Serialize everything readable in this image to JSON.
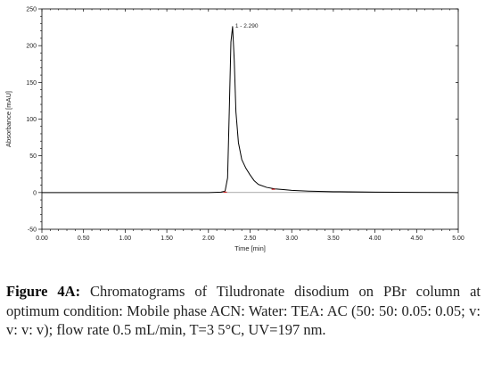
{
  "chart_data": {
    "type": "line",
    "title": "",
    "xlabel": "Time [min]",
    "ylabel": "Absorbance [mAU]",
    "xlim": [
      0,
      5
    ],
    "ylim": [
      -50,
      250
    ],
    "x_ticks": [
      "0.00",
      "0.50",
      "1.00",
      "1.50",
      "2.00",
      "2.50",
      "3.00",
      "3.50",
      "4.00",
      "4.50",
      "5.00"
    ],
    "y_ticks": [
      "-50",
      "0",
      "50",
      "100",
      "150",
      "200",
      "250"
    ],
    "grid": false,
    "series": [
      {
        "x": [
          0.0,
          1.0,
          2.0,
          2.15,
          2.2,
          2.23,
          2.25,
          2.27,
          2.29,
          2.31,
          2.33,
          2.36,
          2.4,
          2.45,
          2.5,
          2.55,
          2.6,
          2.7,
          2.8,
          2.9,
          3.0,
          3.2,
          3.5,
          4.0,
          4.5,
          5.0
        ],
        "y": [
          0,
          0,
          0,
          0.5,
          2,
          20,
          110,
          205,
          226,
          180,
          110,
          68,
          45,
          33,
          24,
          16,
          11,
          7,
          5,
          4,
          3,
          2,
          1.2,
          0.6,
          0.3,
          0
        ],
        "color": "#000000"
      }
    ],
    "annotations": [
      {
        "text": "1 - 2.290",
        "x": 2.29,
        "y": 226
      }
    ],
    "peak_markers": [
      {
        "x": 2.2,
        "y": 0.5,
        "color": "#cc2222"
      },
      {
        "x": 2.78,
        "y": 4.5,
        "color": "#cc2222"
      }
    ]
  },
  "caption": {
    "label": "Figure 4A:",
    "text": " Chromatograms of Tiludronate disodium on PBr column at optimum condition: Mobile phase ACN: Water: TEA: AC (50: 50: 0.05: 0.05; v: v: v: v); flow rate 0.5 mL/min, T=3 5°C, UV=197 nm."
  }
}
